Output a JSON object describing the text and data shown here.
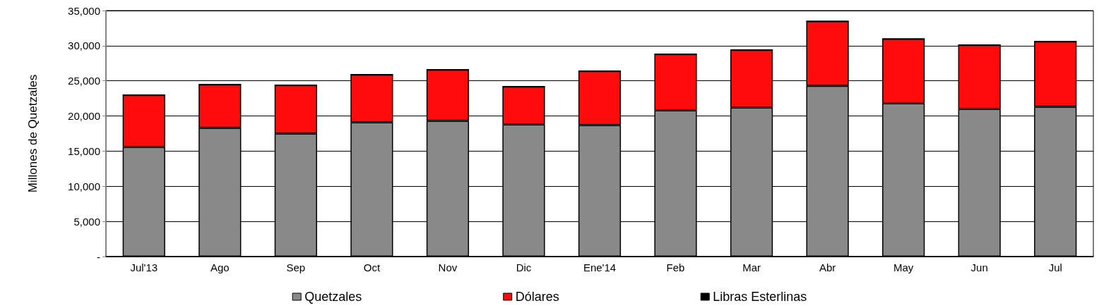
{
  "chart_data": {
    "type": "bar",
    "ylabel": "Millones de Quetzales",
    "stacked": true,
    "legend": "bottom",
    "grid": "y",
    "categories": [
      "Jul'13",
      "Ago",
      "Sep",
      "Oct",
      "Nov",
      "Dic",
      "Ene'14",
      "Feb",
      "Mar",
      "Abr",
      "May",
      "Jun",
      "Jul"
    ],
    "ylim": [
      0,
      35000
    ],
    "yticks": [
      {
        "value": 0,
        "label": "-"
      },
      {
        "value": 5000,
        "label": "5,000"
      },
      {
        "value": 10000,
        "label": "10,000"
      },
      {
        "value": 15000,
        "label": "15,000"
      },
      {
        "value": 20000,
        "label": "20,000"
      },
      {
        "value": 25000,
        "label": "25,000"
      },
      {
        "value": 30000,
        "label": "30,000"
      },
      {
        "value": 35000,
        "label": "35,000"
      }
    ],
    "series": [
      {
        "name": "Quetzales",
        "color": "#898989",
        "values": [
          15600,
          18300,
          17500,
          19100,
          19300,
          18800,
          18700,
          20800,
          21200,
          24300,
          21800,
          21000,
          21300
        ]
      },
      {
        "name": "Dólares",
        "color": "#fe0b0b",
        "values": [
          7400,
          6200,
          6900,
          6800,
          7300,
          5400,
          7700,
          8000,
          8200,
          9200,
          9200,
          9100,
          9300
        ]
      },
      {
        "name": "Libras Esterlinas",
        "color": "#000000",
        "values": [
          0,
          0,
          0,
          0,
          0,
          0,
          0,
          0,
          0,
          0,
          0,
          0,
          0
        ]
      }
    ]
  }
}
